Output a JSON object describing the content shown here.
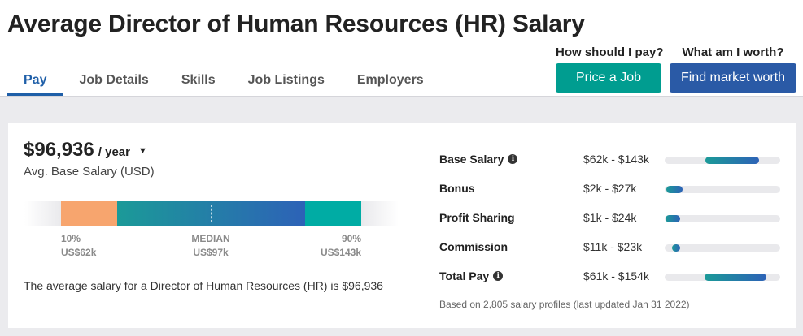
{
  "header": {
    "title": "Average Director of Human Resources (HR) Salary",
    "tabs": [
      {
        "label": "Pay",
        "active": true
      },
      {
        "label": "Job Details",
        "active": false
      },
      {
        "label": "Skills",
        "active": false
      },
      {
        "label": "Job Listings",
        "active": false
      },
      {
        "label": "Employers",
        "active": false
      }
    ],
    "cta_price": {
      "question": "How should I pay?",
      "button": "Price a Job",
      "color": "#009d90"
    },
    "cta_worth": {
      "question": "What am I worth?",
      "button": "Find market worth",
      "color": "#2a5aa6"
    }
  },
  "summary": {
    "amount": "$96,936",
    "period": "/ year",
    "subtitle": "Avg. Base Salary (USD)",
    "sentence": "The average salary for a Director of Human Resources (HR) is $96,936"
  },
  "range": {
    "low_pct": "10%",
    "low_value": "US$62k",
    "median_label": "MEDIAN",
    "median_value": "US$97k",
    "high_pct": "90%",
    "high_value": "US$143k",
    "colors": {
      "low": "#f7a56e",
      "mid_start": "#1b9a98",
      "mid_end": "#2d62b7",
      "high": "#00aca4"
    }
  },
  "breakdown": {
    "scale": {
      "min_k": 0,
      "max_k": 175
    },
    "rows": [
      {
        "label": "Base Salary",
        "info": true,
        "range_text": "$62k - $143k",
        "low_k": 62,
        "high_k": 143
      },
      {
        "label": "Bonus",
        "info": false,
        "range_text": "$2k - $27k",
        "low_k": 2,
        "high_k": 27
      },
      {
        "label": "Profit Sharing",
        "info": false,
        "range_text": "$1k - $24k",
        "low_k": 1,
        "high_k": 24
      },
      {
        "label": "Commission",
        "info": false,
        "range_text": "$11k - $23k",
        "low_k": 11,
        "high_k": 23
      },
      {
        "label": "Total Pay",
        "info": true,
        "range_text": "$61k - $154k",
        "low_k": 61,
        "high_k": 154
      }
    ],
    "footnote": "Based on 2,805 salary profiles (last updated Jan 31 2022)"
  }
}
